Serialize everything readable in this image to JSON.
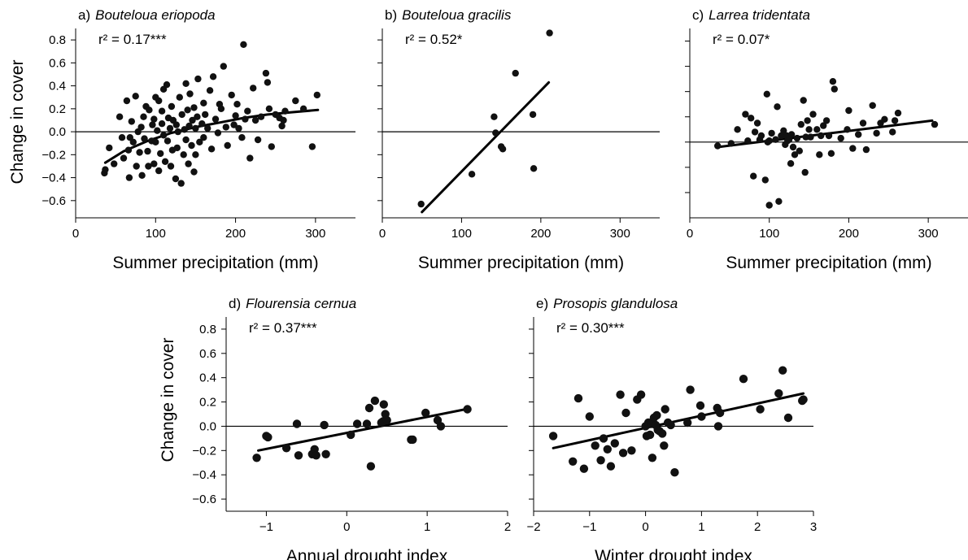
{
  "figure": {
    "chart_data": [
      {
        "type": "scatter",
        "panel": "a)",
        "species": "Bouteloua eriopoda",
        "stat_label": "r² = 0.17***",
        "xlabel": "Summer precipitation (mm)",
        "ylabel": "Change in cover",
        "xlim": [
          0,
          350
        ],
        "ylim": [
          -0.75,
          0.9
        ],
        "xticks": [
          0,
          100,
          200,
          300
        ],
        "xtick_labels": [
          "0",
          "100",
          "200",
          "300"
        ],
        "yticks": [
          0.8,
          0.6,
          0.4,
          0.2,
          0.0,
          -0.2,
          -0.4,
          -0.6
        ],
        "ytick_labels": [
          "0.8",
          "0.6",
          "0.4",
          "0.2",
          "0.0",
          "−0.2",
          "−0.4",
          "−0.6"
        ],
        "fit": {
          "kind": "curve",
          "x": [
            37,
            60,
            90,
            120,
            150,
            180,
            210,
            240,
            270,
            303
          ],
          "y": [
            -0.27,
            -0.17,
            -0.08,
            -0.01,
            0.04,
            0.08,
            0.12,
            0.15,
            0.17,
            0.19
          ]
        },
        "x": [
          36,
          37,
          42,
          48,
          55,
          58,
          60,
          64,
          66,
          67,
          68,
          70,
          72,
          75,
          76,
          78,
          80,
          82,
          83,
          85,
          86,
          88,
          90,
          91,
          92,
          95,
          96,
          98,
          98,
          100,
          100,
          102,
          104,
          104,
          106,
          108,
          108,
          110,
          110,
          112,
          114,
          115,
          116,
          118,
          119,
          120,
          121,
          122,
          125,
          126,
          127,
          128,
          130,
          132,
          133,
          135,
          136,
          138,
          138,
          140,
          141,
          142,
          143,
          145,
          146,
          148,
          148,
          150,
          150,
          152,
          153,
          155,
          158,
          160,
          160,
          162,
          165,
          168,
          170,
          172,
          175,
          178,
          180,
          182,
          185,
          188,
          190,
          195,
          198,
          200,
          202,
          204,
          208,
          210,
          212,
          215,
          218,
          222,
          225,
          228,
          232,
          238,
          240,
          242,
          245,
          250,
          255,
          258,
          260,
          262,
          275,
          285,
          296,
          302
        ],
        "y": [
          -0.36,
          -0.33,
          -0.14,
          -0.28,
          0.13,
          -0.05,
          -0.23,
          0.27,
          -0.16,
          -0.4,
          -0.05,
          0.09,
          -0.09,
          0.31,
          -0.3,
          0.0,
          -0.18,
          0.04,
          -0.38,
          0.13,
          -0.06,
          0.22,
          -0.17,
          -0.3,
          0.19,
          -0.08,
          0.06,
          -0.28,
          0.11,
          0.3,
          -0.09,
          0.01,
          0.27,
          -0.34,
          -0.19,
          0.18,
          0.07,
          -0.03,
          0.37,
          -0.26,
          0.41,
          -0.08,
          0.12,
          0.03,
          -0.3,
          0.22,
          -0.16,
          0.1,
          -0.41,
          0.06,
          -0.14,
          0.0,
          0.3,
          -0.45,
          0.15,
          -0.2,
          0.02,
          0.42,
          -0.07,
          0.19,
          -0.28,
          0.05,
          0.33,
          -0.12,
          0.1,
          -0.35,
          0.21,
          0.03,
          -0.2,
          0.13,
          0.46,
          -0.09,
          0.07,
          0.25,
          -0.05,
          0.15,
          0.03,
          0.36,
          -0.15,
          0.48,
          0.11,
          -0.01,
          0.24,
          0.2,
          0.57,
          0.04,
          -0.12,
          0.32,
          0.06,
          0.14,
          0.24,
          0.03,
          -0.05,
          0.76,
          0.11,
          0.18,
          -0.23,
          0.38,
          0.1,
          -0.07,
          0.13,
          0.51,
          0.43,
          0.2,
          -0.13,
          0.15,
          0.12,
          0.05,
          0.1,
          0.18,
          0.27,
          0.2,
          -0.13,
          0.32
        ]
      },
      {
        "type": "scatter",
        "panel": "b)",
        "species": "Bouteloua gracilis",
        "stat_label": "r² = 0.52*",
        "xlabel": "Summer precipitation (mm)",
        "ylabel": "",
        "xlim": [
          0,
          350
        ],
        "ylim": [
          -0.75,
          0.9
        ],
        "xticks": [
          0,
          100,
          200,
          300
        ],
        "xtick_labels": [
          "0",
          "100",
          "200",
          "300"
        ],
        "yticks": [
          0.8,
          0.6,
          0.4,
          0.2,
          0.0,
          -0.2,
          -0.4,
          -0.6
        ],
        "ytick_labels": [],
        "fit": {
          "kind": "line",
          "x": [
            50,
            210
          ],
          "y": [
            -0.7,
            0.43
          ]
        },
        "x": [
          49,
          113,
          141,
          143,
          150,
          152,
          168,
          190,
          191,
          211
        ],
        "y": [
          -0.63,
          -0.37,
          0.13,
          -0.01,
          -0.13,
          -0.15,
          0.51,
          0.15,
          -0.32,
          0.86
        ]
      },
      {
        "type": "scatter",
        "panel": "c)",
        "species": "Larrea tridentata",
        "stat_label": "r² = 0.07*",
        "xlabel": "Summer precipitation (mm)",
        "ylabel": "",
        "xlim": [
          0,
          350
        ],
        "ylim": [
          -0.6,
          0.9
        ],
        "xticks": [
          0,
          100,
          200,
          300
        ],
        "xtick_labels": [
          "0",
          "100",
          "200",
          "300"
        ],
        "yticks": [
          0.8,
          0.6,
          0.4,
          0.2,
          0.0,
          -0.2,
          -0.4
        ],
        "ytick_labels": [],
        "fit": {
          "kind": "line",
          "x": [
            35,
            305
          ],
          "y": [
            -0.04,
            0.17
          ]
        },
        "x": [
          35,
          52,
          60,
          70,
          73,
          77,
          80,
          82,
          85,
          88,
          90,
          95,
          97,
          98,
          100,
          100,
          103,
          108,
          110,
          112,
          115,
          118,
          120,
          122,
          123,
          125,
          127,
          128,
          130,
          132,
          135,
          138,
          140,
          143,
          145,
          146,
          148,
          150,
          152,
          155,
          160,
          163,
          165,
          168,
          172,
          175,
          178,
          180,
          182,
          190,
          198,
          200,
          205,
          212,
          218,
          222,
          230,
          235,
          240,
          245,
          255,
          258,
          262,
          308
        ],
        "y": [
          -0.03,
          -0.01,
          0.1,
          0.22,
          0.01,
          0.19,
          -0.27,
          0.08,
          0.15,
          0.02,
          0.05,
          -0.3,
          0.38,
          0.0,
          0.01,
          -0.5,
          0.07,
          0.02,
          0.28,
          -0.47,
          0.05,
          0.09,
          -0.02,
          0.05,
          0.01,
          0.02,
          -0.17,
          0.06,
          -0.04,
          -0.1,
          0.03,
          -0.07,
          0.14,
          0.33,
          -0.24,
          0.04,
          0.17,
          0.1,
          0.04,
          0.22,
          0.1,
          -0.1,
          0.05,
          0.13,
          0.17,
          0.05,
          -0.09,
          0.48,
          0.42,
          0.03,
          0.1,
          0.25,
          -0.05,
          0.06,
          0.15,
          -0.06,
          0.29,
          0.07,
          0.15,
          0.18,
          0.08,
          0.17,
          0.23,
          0.14
        ]
      },
      {
        "type": "scatter",
        "panel": "d)",
        "species": "Flourensia cernua",
        "stat_label": "r² = 0.37***",
        "xlabel": "Annual drought index",
        "ylabel": "Change in cover",
        "xlim": [
          -1.5,
          2
        ],
        "ylim": [
          -0.7,
          0.9
        ],
        "xticks": [
          -1,
          0,
          1,
          2
        ],
        "xtick_labels": [
          "−1",
          "0",
          "1",
          "2"
        ],
        "yticks": [
          0.8,
          0.6,
          0.4,
          0.2,
          0.0,
          -0.2,
          -0.4,
          -0.6
        ],
        "ytick_labels": [
          "0.8",
          "0.6",
          "0.4",
          "0.2",
          "0.0",
          "−0.2",
          "−0.4",
          "−0.6"
        ],
        "fit": {
          "kind": "line",
          "x": [
            -1.1,
            1.48
          ],
          "y": [
            -0.2,
            0.14
          ]
        },
        "x": [
          -1.12,
          -1.0,
          -0.98,
          -0.75,
          -0.62,
          -0.6,
          -0.43,
          -0.4,
          -0.38,
          -0.28,
          -0.26,
          0.05,
          0.13,
          0.25,
          0.28,
          0.3,
          0.35,
          0.43,
          0.45,
          0.46,
          0.48,
          0.5,
          0.8,
          0.82,
          0.98,
          1.13,
          1.17,
          1.5
        ],
        "y": [
          -0.26,
          -0.08,
          -0.09,
          -0.18,
          0.02,
          -0.24,
          -0.23,
          -0.19,
          -0.24,
          0.01,
          -0.23,
          -0.07,
          0.02,
          0.02,
          0.15,
          -0.33,
          0.21,
          0.03,
          0.04,
          0.18,
          0.1,
          0.05,
          -0.11,
          -0.11,
          0.11,
          0.05,
          0.0,
          0.14
        ]
      },
      {
        "type": "scatter",
        "panel": "e)",
        "species": "Prosopis glandulosa",
        "stat_label": "r² = 0.30***",
        "xlabel": "Winter drought index",
        "ylabel": "",
        "xlim": [
          -2,
          3
        ],
        "ylim": [
          -0.7,
          0.9
        ],
        "xticks": [
          -2,
          -1,
          0,
          1,
          2,
          3
        ],
        "xtick_labels": [
          "−2",
          "−1",
          "0",
          "1",
          "2",
          "3"
        ],
        "yticks": [
          0.8,
          0.6,
          0.4,
          0.2,
          0.0,
          -0.2,
          -0.4,
          -0.6
        ],
        "ytick_labels": [],
        "fit": {
          "kind": "line",
          "x": [
            -1.65,
            2.82
          ],
          "y": [
            -0.18,
            0.27
          ]
        },
        "x": [
          -1.65,
          -1.3,
          -1.2,
          -1.1,
          -1.0,
          -0.9,
          -0.8,
          -0.75,
          -0.68,
          -0.62,
          -0.55,
          -0.45,
          -0.4,
          -0.35,
          -0.25,
          -0.15,
          -0.08,
          0.0,
          0.02,
          0.05,
          0.08,
          0.1,
          0.12,
          0.15,
          0.18,
          0.2,
          0.22,
          0.25,
          0.3,
          0.33,
          0.35,
          0.4,
          0.45,
          0.52,
          0.75,
          0.8,
          0.98,
          1.0,
          1.28,
          1.3,
          1.33,
          1.75,
          2.05,
          2.38,
          2.45,
          2.55,
          2.8,
          2.82
        ],
        "y": [
          -0.08,
          -0.29,
          0.23,
          -0.35,
          0.08,
          -0.16,
          -0.28,
          -0.1,
          -0.19,
          -0.33,
          -0.14,
          0.26,
          -0.22,
          0.11,
          -0.2,
          0.22,
          0.26,
          0.0,
          -0.08,
          0.03,
          -0.07,
          0.02,
          -0.26,
          0.07,
          0.01,
          0.09,
          -0.03,
          -0.04,
          -0.06,
          -0.16,
          0.14,
          0.03,
          0.01,
          -0.38,
          0.03,
          0.3,
          0.17,
          0.08,
          0.15,
          0.0,
          0.11,
          0.39,
          0.14,
          0.27,
          0.46,
          0.07,
          0.21,
          0.22
        ]
      }
    ]
  }
}
